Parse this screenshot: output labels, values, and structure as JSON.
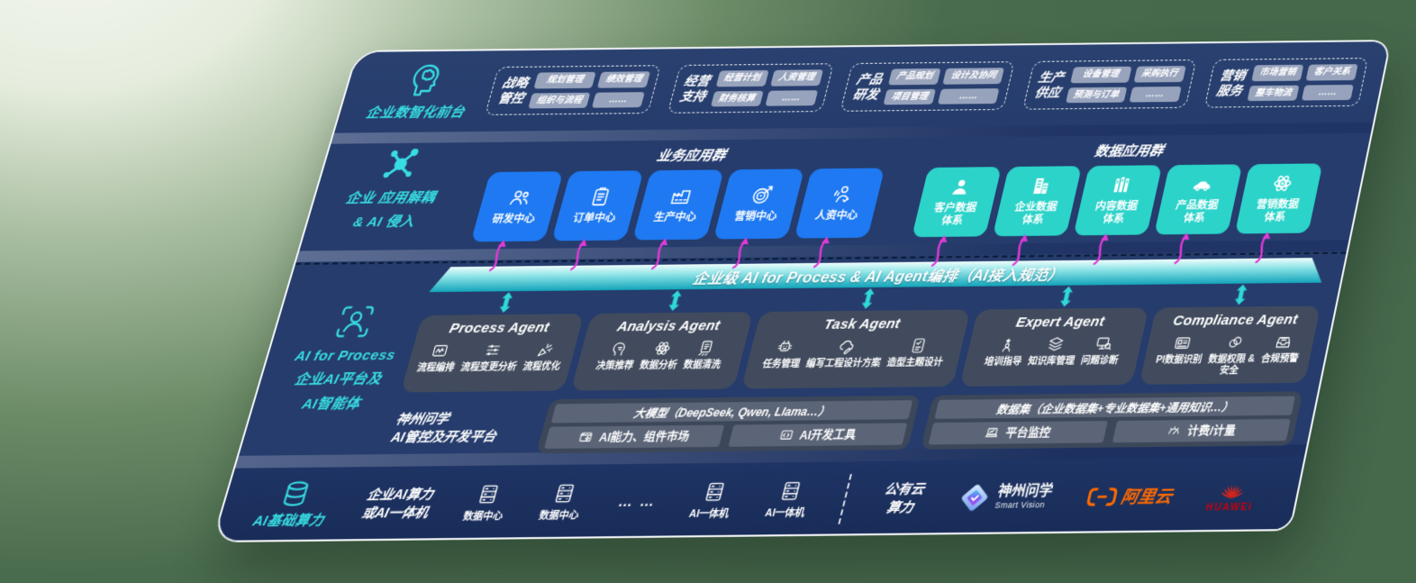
{
  "front_layer": {
    "title": "企业数智化前台",
    "icon": "brain-head",
    "groups": [
      {
        "name_lines": [
          "战略",
          "管控"
        ],
        "items": [
          "规划管理",
          "绩效管理",
          "组织与流程",
          "……"
        ]
      },
      {
        "name_lines": [
          "经营",
          "支持"
        ],
        "items": [
          "经营计划",
          "人资管理",
          "财务核算",
          "……"
        ]
      },
      {
        "name_lines": [
          "产品",
          "研发"
        ],
        "items": [
          "产品规划",
          "设计及协同",
          "项目管理",
          "……"
        ]
      },
      {
        "name_lines": [
          "生产",
          "供应"
        ],
        "items": [
          "设备管理",
          "采购执行",
          "预测与订单",
          "……"
        ]
      },
      {
        "name_lines": [
          "营销",
          "服务"
        ],
        "items": [
          "市场营销",
          "客户关系",
          "整车物流",
          "……"
        ]
      }
    ]
  },
  "decouple_layer": {
    "title_lines": [
      "企业 应用解耦",
      "& AI 侵入"
    ],
    "icon": "molecule",
    "business_group": {
      "title": "业务应用群",
      "color": "#1e79f2",
      "cards": [
        {
          "label": "研发中心",
          "icon": "people-group"
        },
        {
          "label": "订单中心",
          "icon": "clipboard"
        },
        {
          "label": "生产中心",
          "icon": "factory"
        },
        {
          "label": "营销中心",
          "icon": "target"
        },
        {
          "label": "人资中心",
          "icon": "person-waves"
        }
      ]
    },
    "data_group": {
      "title": "数据应用群",
      "color": "#2bd3c9",
      "cards": [
        {
          "label_lines": [
            "客户数据",
            "体系"
          ],
          "icon": "person"
        },
        {
          "label_lines": [
            "企业数据",
            "体系"
          ],
          "icon": "building"
        },
        {
          "label_lines": [
            "内容数据",
            "体系"
          ],
          "icon": "books"
        },
        {
          "label_lines": [
            "产品数据",
            "体系"
          ],
          "icon": "car"
        },
        {
          "label_lines": [
            "营销数据",
            "体系"
          ],
          "icon": "atom"
        }
      ]
    }
  },
  "ai_layer": {
    "title_lines": [
      "AI for Process",
      "企业AI平台及",
      "AI智能体"
    ],
    "icon": "person-scan",
    "orchestration_bar": "企业级 AI for Process & AI Agent编排（AI接入规范）",
    "agents": [
      {
        "title": "Process Agent",
        "items": [
          {
            "label": "流程编排",
            "icon": "box-wave"
          },
          {
            "label": "流程变更分析",
            "icon": "sliders"
          },
          {
            "label": "流程优化",
            "icon": "celebrate"
          }
        ]
      },
      {
        "title": "Analysis Agent",
        "items": [
          {
            "label": "决策推荐",
            "icon": "head-idea"
          },
          {
            "label": "数据分析",
            "icon": "atom"
          },
          {
            "label": "数据清洗",
            "icon": "doc-clean"
          }
        ]
      },
      {
        "title": "Task Agent",
        "items": [
          {
            "label": "任务管理",
            "icon": "robot"
          },
          {
            "label": "编写工程设计方案",
            "icon": "cloud-pen"
          },
          {
            "label": "造型主题设计",
            "icon": "tablet-check"
          }
        ]
      },
      {
        "title": "Expert Agent",
        "items": [
          {
            "label": "培训指导",
            "icon": "trainer"
          },
          {
            "label": "知识库管理",
            "icon": "layers"
          },
          {
            "label": "问题诊断",
            "icon": "diagnose"
          }
        ]
      },
      {
        "title": "Compliance Agent",
        "items": [
          {
            "label": "PI数据识别",
            "icon": "id-card"
          },
          {
            "label": "数据权限 &\n安全",
            "icon": "rings"
          },
          {
            "label": "合规预警",
            "icon": "inbox-alert"
          }
        ]
      }
    ],
    "platform": {
      "title_lines": [
        "神州问学",
        "AI管控及开发平台"
      ],
      "model_box": {
        "header": "大模型（DeepSeek, Qwen, Llama…）",
        "cells": [
          {
            "label": "AI能力、组件市场",
            "icon": "window-gear"
          },
          {
            "label": "AI开发工具",
            "icon": "code-window"
          }
        ]
      },
      "data_box": {
        "header": "数据集（企业数据集+专业数据集+通用知识…）",
        "cells": [
          {
            "label": "平台监控",
            "icon": "laptop-chart"
          },
          {
            "label": "计费/计量",
            "icon": "gauge"
          }
        ]
      }
    }
  },
  "compute_layer": {
    "title": "AI基础算力",
    "icon": "database",
    "items": [
      {
        "type": "text",
        "lines": [
          "企业AI算力",
          "或AI一体机"
        ]
      },
      {
        "type": "icon-label",
        "icon": "server",
        "label": "数据中心"
      },
      {
        "type": "icon-label",
        "icon": "server",
        "label": "数据中心"
      },
      {
        "type": "dots",
        "label": "… …"
      },
      {
        "type": "icon-label",
        "icon": "server",
        "label": "AI一体机"
      },
      {
        "type": "icon-label",
        "icon": "server",
        "label": "AI一体机"
      },
      {
        "type": "divider"
      },
      {
        "type": "text",
        "lines": [
          "公有云",
          "算力"
        ]
      },
      {
        "type": "logo",
        "logo": "smart-vision",
        "lines": [
          "神州问学",
          "Smart Vision"
        ]
      },
      {
        "type": "logo",
        "logo": "aliyun",
        "label": "阿里云"
      },
      {
        "type": "logo",
        "logo": "huawei",
        "label": "HUAWEI"
      }
    ]
  },
  "colors": {
    "canvas_green": "#4a6c4e",
    "band_navy": "#253c6c",
    "band_navy_dark": "#1d3160",
    "teal_accent": "#38dde3",
    "business_card_blue": "#1e79f2",
    "data_card_teal": "#2bd3c9",
    "flow_arrow_magenta": "#e03ad8",
    "agent_box_gray": "#414b5d",
    "aliyun_orange": "#ff6a00",
    "huawei_red": "#e2231a"
  }
}
